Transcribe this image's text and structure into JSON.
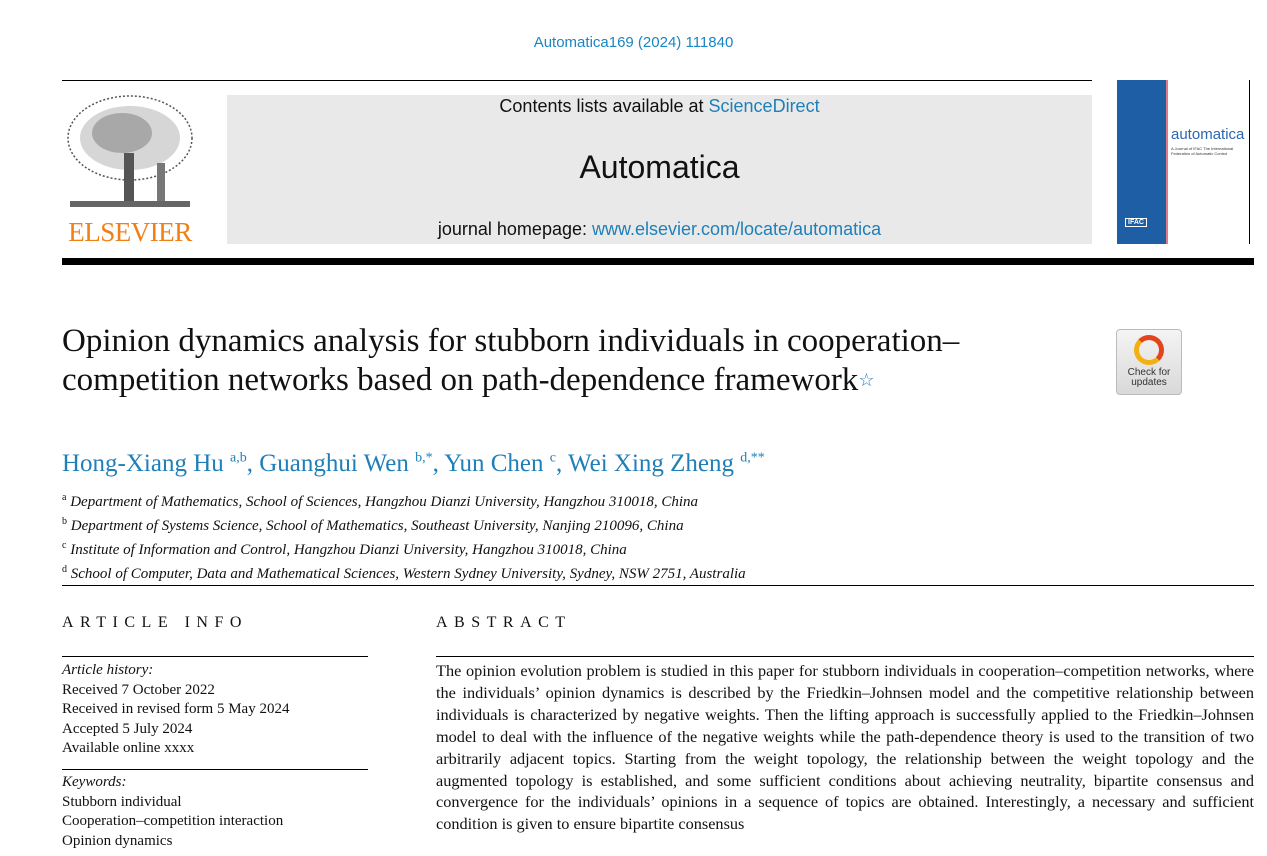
{
  "journal_ref": "Automatica169 (2024) 111840",
  "header": {
    "publisher_logo_text": "ELSEVIER",
    "contents_prefix": "Contents lists available at ",
    "contents_link": "ScienceDirect",
    "journal_name": "Automatica",
    "homepage_prefix": "journal homepage: ",
    "homepage_link": "www.elsevier.com/locate/automatica",
    "cover": {
      "title": "automatica",
      "subtitle": "A Journal of IFAC The International Federation of Automatic Control",
      "badge": "IFAC"
    }
  },
  "check_updates": {
    "line1": "Check for",
    "line2": "updates"
  },
  "title": "Opinion dynamics analysis for stubborn individuals in cooperation–competition networks based on path-dependence framework",
  "title_mark": "☆",
  "authors": [
    {
      "name": "Hong-Xiang Hu",
      "sup": "a,b"
    },
    {
      "name": "Guanghui Wen",
      "sup": "b,*"
    },
    {
      "name": "Yun Chen",
      "sup": "c"
    },
    {
      "name": "Wei Xing Zheng",
      "sup": "d,**"
    }
  ],
  "affiliations": [
    {
      "sup": "a",
      "text": "Department of Mathematics, School of Sciences, Hangzhou Dianzi University, Hangzhou 310018, China"
    },
    {
      "sup": "b",
      "text": "Department of Systems Science, School of Mathematics, Southeast University, Nanjing 210096, China"
    },
    {
      "sup": "c",
      "text": "Institute of Information and Control, Hangzhou Dianzi University, Hangzhou 310018, China"
    },
    {
      "sup": "d",
      "text": "School of Computer, Data and Mathematical Sciences, Western Sydney University, Sydney, NSW 2751, Australia"
    }
  ],
  "article_info": {
    "heading": "ARTICLE INFO",
    "history_label": "Article history:",
    "history": [
      "Received 7 October 2022",
      "Received in revised form 5 May 2024",
      "Accepted 5 July 2024",
      "Available online  xxxx"
    ],
    "keywords_label": "Keywords:",
    "keywords": [
      "Stubborn individual",
      "Cooperation–competition interaction",
      "Opinion dynamics"
    ]
  },
  "abstract": {
    "heading": "ABSTRACT",
    "text": "The opinion evolution problem is studied in this paper for stubborn individuals in cooperation–competition networks, where the individuals’ opinion dynamics is described by the Friedkin–Johnsen model and the competitive relationship between individuals is characterized by negative weights. Then the lifting approach is successfully applied to the Friedkin–Johnsen model to deal with the influence of the negative weights while the path-dependence theory is used to the transition of two arbitrarily adjacent topics. Starting from the weight topology, the relationship between the weight topology and the augmented topology is established, and some sufficient conditions about achieving neutrality, bipartite consensus and convergence for the individuals’ opinions in a sequence of topics are obtained. Interestingly, a necessary and sufficient condition is given to ensure bipartite consensus"
  }
}
